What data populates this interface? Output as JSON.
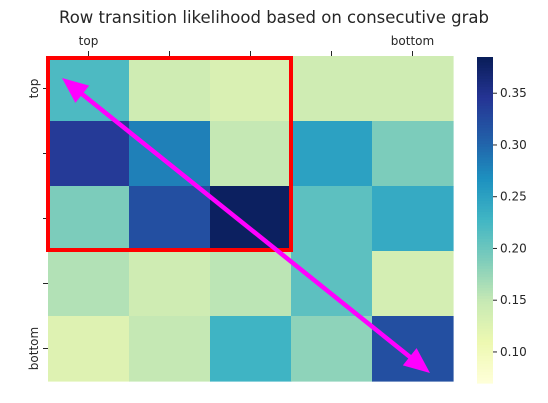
{
  "chart_data": {
    "type": "heatmap",
    "title": "Row transition likelihood based on consecutive grab",
    "x_tick_labels": [
      "top",
      "",
      "",
      "",
      "bottom"
    ],
    "y_tick_labels": [
      "top",
      "",
      "",
      "",
      "bottom"
    ],
    "x_label_position": "top",
    "values": [
      [
        0.22,
        0.14,
        0.13,
        0.14,
        0.14
      ],
      [
        0.34,
        0.28,
        0.15,
        0.25,
        0.19
      ],
      [
        0.19,
        0.32,
        0.38,
        0.21,
        0.24
      ],
      [
        0.16,
        0.14,
        0.155,
        0.21,
        0.135
      ],
      [
        0.125,
        0.15,
        0.23,
        0.18,
        0.32
      ]
    ],
    "colorbar": {
      "colormap": "YlGnBu",
      "range": [
        0.07,
        0.385
      ],
      "ticks": [
        0.1,
        0.15,
        0.2,
        0.25,
        0.3,
        0.35
      ],
      "tick_labels": [
        "0.10",
        "0.15",
        "0.20",
        "0.25",
        "0.30",
        "0.35"
      ]
    },
    "annotations": {
      "highlight_box": {
        "rows": [
          0,
          2
        ],
        "cols": [
          0,
          2
        ],
        "color": "#ff0000"
      },
      "arrow": {
        "from": "top-left",
        "to": "bottom-right",
        "double_headed": true,
        "color": "#ff00ff"
      }
    }
  }
}
